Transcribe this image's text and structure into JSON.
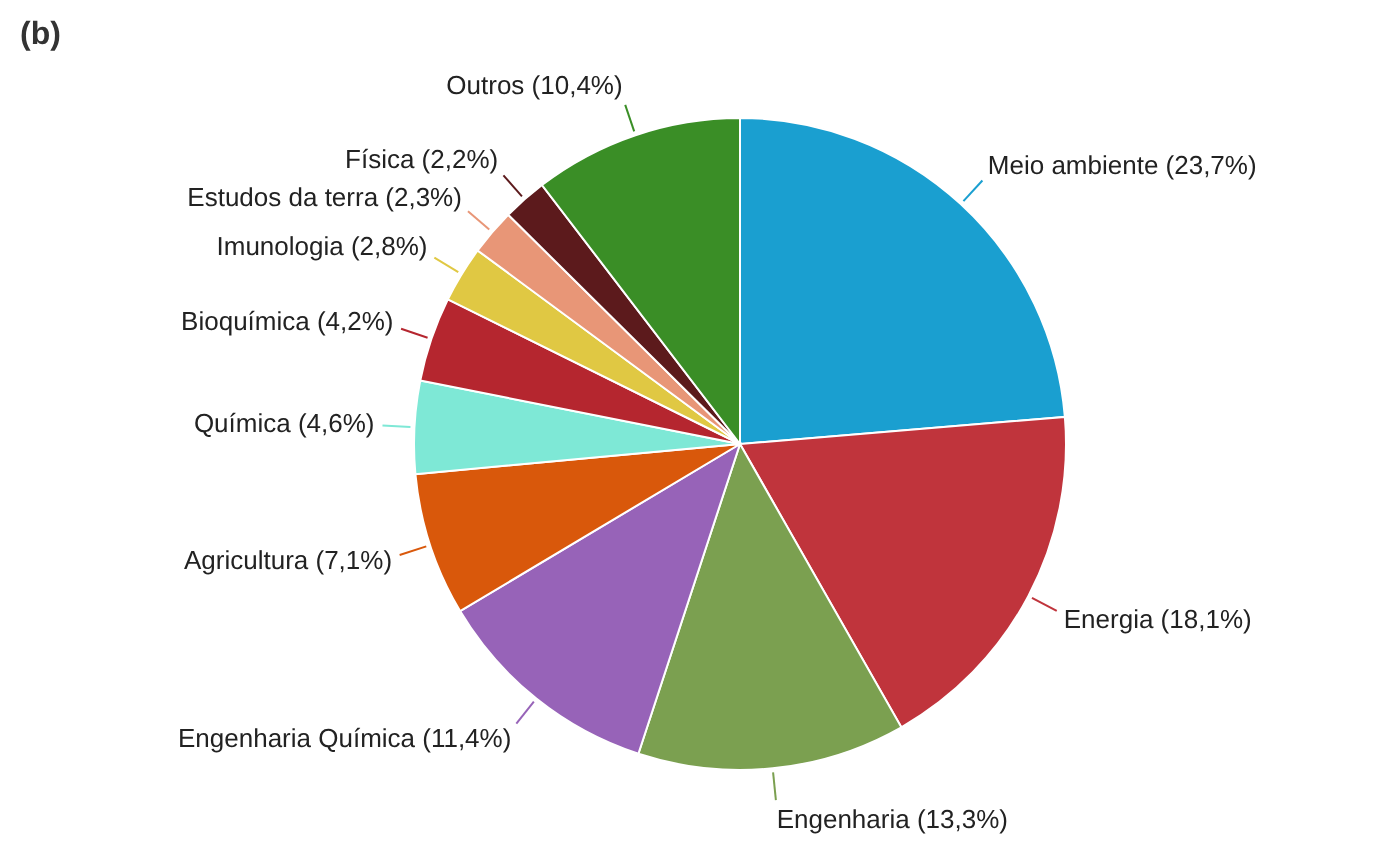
{
  "chart_data": {
    "type": "pie",
    "title": "(b)",
    "categories": [
      "Meio ambiente",
      "Energia",
      "Engenharia",
      "Engenharia Química",
      "Agricultura",
      "Química",
      "Bioquímica",
      "Imunologia",
      "Estudos da terra",
      "Física",
      "Outros"
    ],
    "values": [
      23.7,
      18.1,
      13.3,
      11.4,
      7.1,
      4.6,
      4.2,
      2.8,
      2.3,
      2.2,
      10.4
    ],
    "value_labels": [
      "(23,7%)",
      "(18,1%)",
      "(13,3%)",
      "(11,4%)",
      "(7,1%)",
      "(4,6%)",
      "(4,2%)",
      "(2,8%)",
      "(2,3%)",
      "(2,2%)",
      "(10,4%)"
    ],
    "colors": [
      "#1a9fd0",
      "#c0343c",
      "#7ba050",
      "#9763b8",
      "#d9580b",
      "#7ee8d6",
      "#b5262f",
      "#e0c843",
      "#e89677",
      "#5c1a1c",
      "#3a8e26"
    ]
  }
}
